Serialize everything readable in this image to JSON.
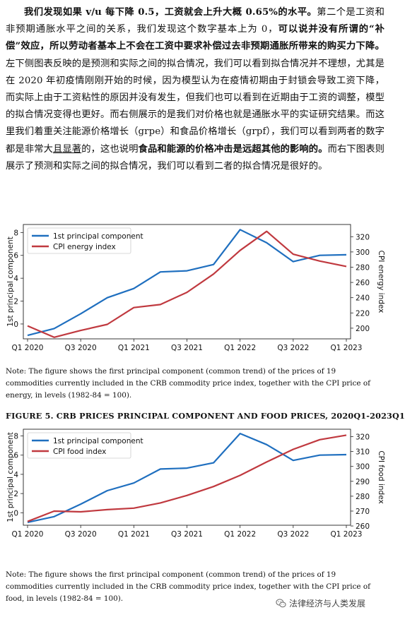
{
  "paragraph": [
    {
      "t": "我们发现如果 v/u 每下降 0.5，工资就会上升大概 0.65%的水平。",
      "b": true
    },
    {
      "t": "第二个是工资和非预期通胀水平之间的关系，我们发现这个数字基本上为 0，"
    },
    {
      "t": "可以说并没有所谓的“补偿”效应，所以劳动者基本上不会在工资中要求补偿过去非预期通胀所带来的购买力下降。",
      "b": true
    },
    {
      "t": "左下侧图表反映的是预测和实际之间的拟合情况，我们可以看到拟合情况并不理想，尤其是在 2020 年初疫情刚刚开始的时候，因为模型认为在疫情初期由于封锁会导致工资下降，而实际上由于工资粘性的原因并没有发生，但我们也可以看到在近期由于工资的调整，模型的拟合情况变得也更好。而右侧展示的是我们对价格也就是通胀水平的实证研究结果。而这里我们着重关注能源价格增长（grpe）和食品价格增长（grpf），我们可以看到两者的数字都是非常大"
    },
    {
      "t": "且显著",
      "u": true
    },
    {
      "t": "的，这也说明"
    },
    {
      "t": "食品和能源的价格冲击是远超其他的影响的。",
      "b": true
    },
    {
      "t": "而右下图表则展示了预测和实际之间的拟合情况，我们可以看到二者的拟合情况是很好的。"
    }
  ],
  "figure5_title": "FIGURE 5.  CRB PRICES PRINCIPAL COMPONENT AND FOOD PRICES, 2020Q1-2023Q1",
  "note1": "Note: The figure shows the first principal component (common trend) of the prices of 19 commodities currently included in the CRB commodity price index, together with the CPI price of energy, in levels (1982-84 = 100).",
  "note2": "Note: The figure shows the first principal component (common trend) of the prices of 19 commodities currently included in the CRB commodity price index, together with the CPI price of food, in levels (1982-84 = 100).",
  "watermark": "法律经济与人类发展",
  "colors": {
    "blue": "#1f6fbf",
    "red": "#c0393f"
  },
  "chart_data": [
    {
      "type": "line",
      "x": [
        "2020Q1",
        "2020Q2",
        "2020Q3",
        "2020Q4",
        "2021Q1",
        "2021Q2",
        "2021Q3",
        "2021Q4",
        "2022Q1",
        "2022Q2",
        "2022Q3",
        "2022Q4",
        "2023Q1"
      ],
      "xticks": [
        "Q1 2020",
        "Q3 2020",
        "Q1 2021",
        "Q3 2021",
        "Q1 2022",
        "Q3 2022",
        "Q1 2023"
      ],
      "ylabel": "1st principal component",
      "y2label": "CPI energy index",
      "ylim": [
        -1.3,
        8.7
      ],
      "yticks": [
        0,
        2,
        4,
        6,
        8
      ],
      "y2lim": [
        186,
        336
      ],
      "y2ticks": [
        200,
        220,
        240,
        260,
        280,
        300,
        320
      ],
      "legend_position": "top-left",
      "series": [
        {
          "name": "1st principal component",
          "axis": "left",
          "color": "#1f6fbf",
          "values": [
            -1.0,
            -0.4,
            0.9,
            2.3,
            3.1,
            4.55,
            4.65,
            5.2,
            8.25,
            7.1,
            5.45,
            6.0,
            6.05
          ]
        },
        {
          "name": "CPI energy index",
          "axis": "right",
          "color": "#c0393f",
          "values": [
            203,
            188,
            197,
            205,
            227,
            231,
            247,
            271,
            302,
            327,
            297,
            288,
            281
          ]
        }
      ]
    },
    {
      "type": "line",
      "x": [
        "2020Q1",
        "2020Q2",
        "2020Q3",
        "2020Q4",
        "2021Q1",
        "2021Q2",
        "2021Q3",
        "2021Q4",
        "2022Q1",
        "2022Q2",
        "2022Q3",
        "2022Q4",
        "2023Q1"
      ],
      "xticks": [
        "Q1 2020",
        "Q3 2020",
        "Q1 2021",
        "Q3 2021",
        "Q1 2022",
        "Q3 2022",
        "Q1 2023"
      ],
      "ylabel": "1st principal component",
      "y2label": "CPI food index",
      "ylim": [
        -1.3,
        8.7
      ],
      "yticks": [
        0,
        2,
        4,
        6,
        8
      ],
      "y2lim": [
        260.5,
        325
      ],
      "y2ticks": [
        260,
        270,
        280,
        290,
        300,
        310,
        320
      ],
      "legend_position": "top-left",
      "series": [
        {
          "name": "1st principal component",
          "axis": "left",
          "color": "#1f6fbf",
          "values": [
            -1.0,
            -0.4,
            0.9,
            2.3,
            3.1,
            4.55,
            4.65,
            5.2,
            8.25,
            7.1,
            5.45,
            6.0,
            6.05
          ]
        },
        {
          "name": "CPI food index",
          "axis": "right",
          "color": "#c0393f",
          "values": [
            263,
            270,
            269.5,
            271,
            272,
            275.5,
            280.5,
            286.5,
            294,
            303,
            311.5,
            318,
            321
          ]
        }
      ]
    }
  ]
}
